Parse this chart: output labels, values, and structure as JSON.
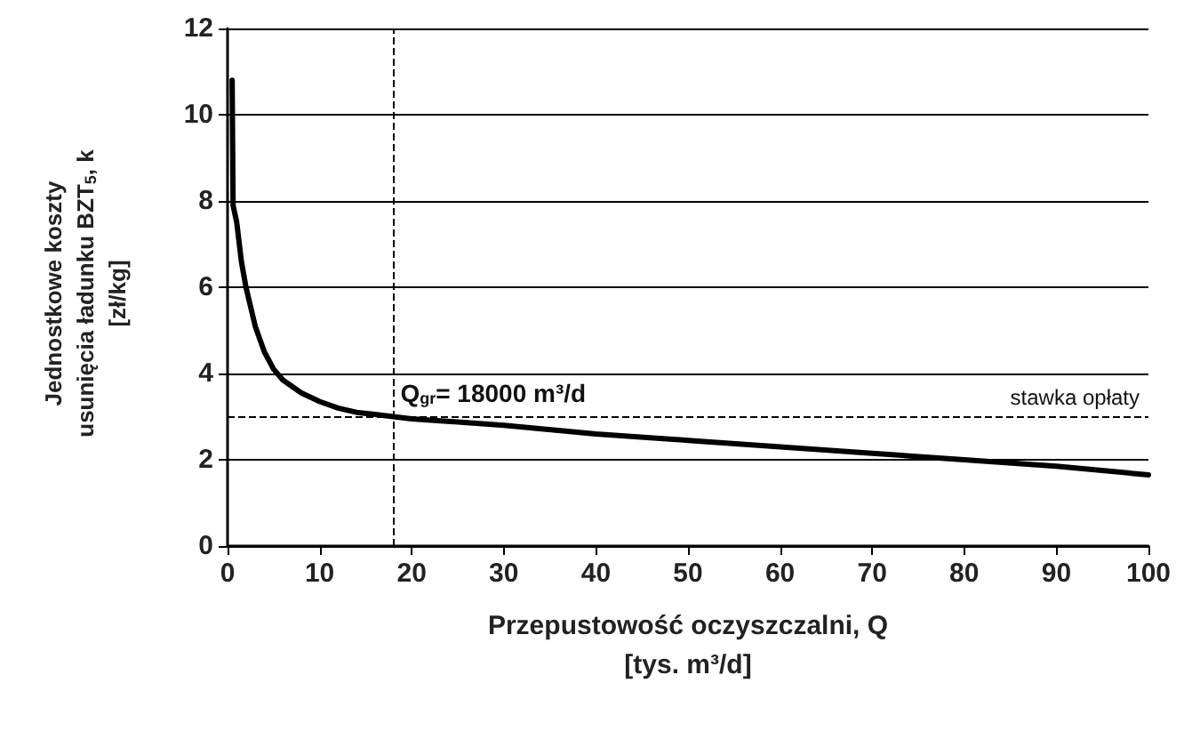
{
  "chart_data": {
    "type": "line",
    "xlabel": "Przepustowość oczyszczalni, Q [tys. m³/d]",
    "ylabel": "Jednostkowe koszty usunięcia ładunku BZT$_{5}$, k [zł/kg]",
    "x": [
      0.5,
      0.6,
      1,
      1.5,
      2,
      3,
      4,
      5,
      6,
      7,
      8,
      10,
      12,
      14,
      16,
      18,
      20,
      30,
      40,
      50,
      60,
      70,
      80,
      90,
      100
    ],
    "series": [
      {
        "color": "#000000",
        "values": [
          10.8,
          7.9,
          7.5,
          6.6,
          6.0,
          5.1,
          4.5,
          4.1,
          3.85,
          3.7,
          3.55,
          3.35,
          3.2,
          3.1,
          3.05,
          3.0,
          2.95,
          2.8,
          2.6,
          2.45,
          2.3,
          2.15,
          2.0,
          1.85,
          1.65
        ]
      }
    ],
    "xlim": [
      0,
      100
    ],
    "xticks": [
      0,
      10,
      20,
      30,
      40,
      50,
      60,
      70,
      80,
      90,
      100
    ],
    "ylim": [
      0,
      12
    ],
    "yticks": [
      0,
      2,
      4,
      6,
      8,
      10,
      12
    ],
    "ref_lines": [
      {
        "axis": "x",
        "value": 18,
        "label": "Q$_{gr}$= 18000 m³/d",
        "color": "#000000",
        "line_style": "dashed"
      },
      {
        "axis": "y",
        "value": 3,
        "label": "stawka opłaty",
        "color": "#000000",
        "line_style": "dashed"
      }
    ],
    "grid": "y",
    "marker": "none",
    "line_style": "solid"
  }
}
